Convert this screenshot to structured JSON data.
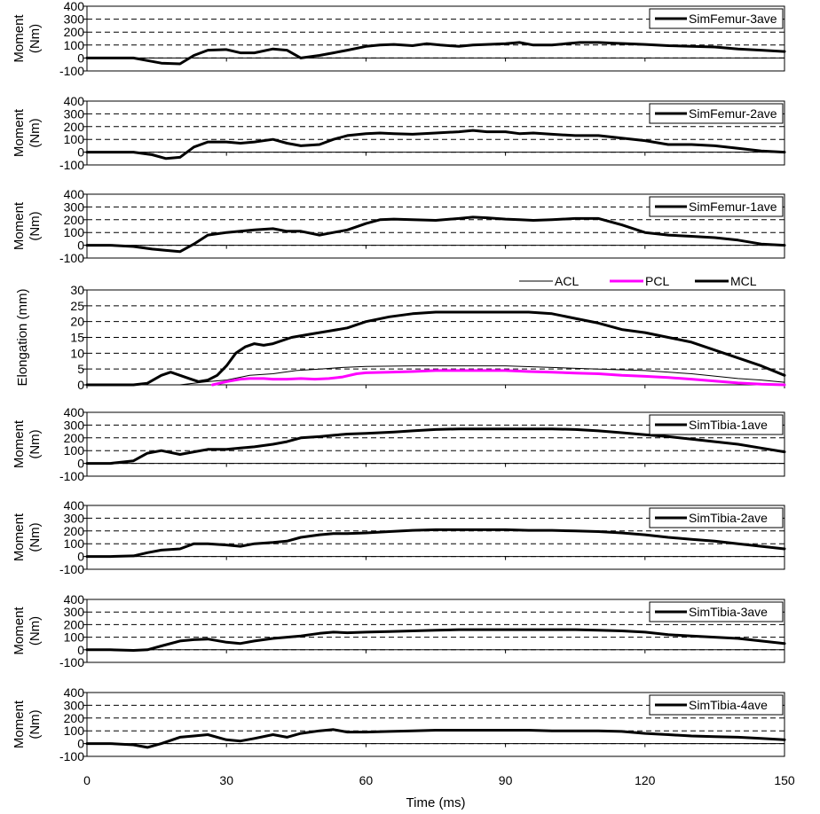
{
  "chart_data": {
    "type": "line",
    "xlabel": "Time (ms)",
    "xlim": [
      0,
      150
    ],
    "xticks": [
      0,
      30,
      60,
      90,
      120,
      150
    ],
    "panels": [
      {
        "ylabel": [
          "Moment",
          "(Nm)"
        ],
        "ylim": [
          -100,
          400
        ],
        "yticks": [
          -100,
          0,
          100,
          200,
          300,
          400
        ],
        "legend_position": "top-right",
        "series": [
          {
            "name": "SimFemur-3ave",
            "color": "#000000",
            "width": 3,
            "x": [
              0,
              5,
              10,
              13,
              16,
              20,
              23,
              26,
              30,
              33,
              36,
              40,
              43,
              46,
              50,
              53,
              56,
              60,
              63,
              66,
              70,
              73,
              76,
              80,
              83,
              86,
              90,
              93,
              96,
              100,
              103,
              106,
              110,
              113,
              116,
              120,
              125,
              130,
              135,
              140,
              145,
              150
            ],
            "y": [
              0,
              0,
              0,
              -20,
              -40,
              -45,
              20,
              60,
              65,
              40,
              40,
              70,
              60,
              0,
              20,
              40,
              60,
              90,
              100,
              105,
              95,
              110,
              100,
              90,
              100,
              105,
              110,
              120,
              100,
              100,
              110,
              120,
              120,
              115,
              110,
              105,
              95,
              90,
              85,
              70,
              60,
              50
            ]
          }
        ]
      },
      {
        "ylabel": [
          "Moment",
          "(Nm)"
        ],
        "ylim": [
          -100,
          400
        ],
        "yticks": [
          -100,
          0,
          100,
          200,
          300,
          400
        ],
        "legend_position": "top-right",
        "series": [
          {
            "name": "SimFemur-2ave",
            "color": "#000000",
            "width": 3,
            "x": [
              0,
              5,
              10,
              14,
              17,
              20,
              23,
              26,
              30,
              33,
              36,
              40,
              43,
              46,
              50,
              53,
              56,
              60,
              63,
              66,
              70,
              75,
              80,
              83,
              86,
              90,
              93,
              96,
              100,
              105,
              110,
              115,
              120,
              125,
              130,
              135,
              140,
              145,
              150
            ],
            "y": [
              0,
              0,
              0,
              -20,
              -50,
              -40,
              40,
              80,
              80,
              70,
              80,
              100,
              70,
              50,
              60,
              100,
              130,
              145,
              150,
              145,
              140,
              150,
              160,
              170,
              160,
              160,
              145,
              150,
              140,
              130,
              130,
              110,
              90,
              60,
              60,
              50,
              30,
              10,
              0
            ]
          }
        ]
      },
      {
        "ylabel": [
          "Moment",
          "(Nm)"
        ],
        "ylim": [
          -100,
          400
        ],
        "yticks": [
          -100,
          0,
          100,
          200,
          300,
          400
        ],
        "legend_position": "top-right",
        "series": [
          {
            "name": "SimFemur-1ave",
            "color": "#000000",
            "width": 3,
            "x": [
              0,
              5,
              10,
              14,
              17,
              20,
              23,
              26,
              30,
              33,
              36,
              40,
              43,
              46,
              50,
              53,
              56,
              60,
              63,
              66,
              70,
              75,
              80,
              83,
              86,
              90,
              93,
              96,
              100,
              105,
              110,
              115,
              120,
              125,
              130,
              135,
              140,
              145,
              150
            ],
            "y": [
              0,
              0,
              -10,
              -30,
              -40,
              -50,
              10,
              80,
              100,
              110,
              120,
              130,
              110,
              110,
              80,
              100,
              120,
              170,
              200,
              205,
              200,
              195,
              210,
              220,
              215,
              205,
              200,
              195,
              200,
              210,
              210,
              160,
              100,
              80,
              70,
              60,
              40,
              10,
              0
            ]
          }
        ]
      },
      {
        "ylabel": [
          "Elongation (mm)"
        ],
        "ylim": [
          0,
          30
        ],
        "yticks": [
          0,
          5,
          10,
          15,
          20,
          25,
          30
        ],
        "legend_position": "top",
        "series": [
          {
            "name": "ACL",
            "color": "#000000",
            "width": 1,
            "x": [
              0,
              20,
              26,
              30,
              35,
              40,
              45,
              50,
              55,
              60,
              70,
              80,
              90,
              100,
              110,
              120,
              130,
              140,
              145,
              150
            ],
            "y": [
              0,
              0,
              1,
              1.5,
              3,
              3.5,
              4.5,
              5,
              5.5,
              5.8,
              6,
              6,
              6,
              5.5,
              5,
              4.5,
              3.5,
              2,
              1.5,
              0.8
            ]
          },
          {
            "name": "PCL",
            "color": "#ff00ff",
            "width": 3,
            "x": [
              27,
              30,
              33,
              35,
              38,
              40,
              43,
              46,
              49,
              52,
              55,
              58,
              60,
              65,
              70,
              75,
              80,
              85,
              90,
              95,
              100,
              105,
              110,
              115,
              120,
              125,
              130,
              135,
              140,
              145,
              150
            ],
            "y": [
              0,
              1,
              1.8,
              2,
              2,
              1.8,
              1.8,
              2,
              1.8,
              2,
              2.5,
              3.5,
              3.8,
              4,
              4.2,
              4.5,
              4.5,
              4.5,
              4.5,
              4.2,
              4,
              3.7,
              3.5,
              3,
              2.7,
              2.3,
              1.8,
              1.2,
              0.6,
              0.2,
              0
            ]
          },
          {
            "name": "MCL",
            "color": "#000000",
            "width": 3,
            "x": [
              0,
              10,
              13,
              16,
              18,
              20,
              22,
              24,
              26,
              28,
              30,
              32,
              34,
              36,
              38,
              40,
              44,
              48,
              52,
              56,
              60,
              65,
              70,
              75,
              80,
              85,
              90,
              95,
              100,
              105,
              110,
              115,
              120,
              125,
              130,
              135,
              140,
              145,
              150
            ],
            "y": [
              0,
              0,
              0.5,
              3,
              4,
              3,
              2,
              1,
              1.5,
              3,
              6,
              10,
              12,
              13,
              12.5,
              13,
              15,
              16,
              17,
              18,
              20,
              21.5,
              22.5,
              23,
              23,
              23,
              23,
              23,
              22.5,
              21,
              19.5,
              17.5,
              16.5,
              15,
              13.5,
              11,
              8.5,
              6,
              3
            ]
          }
        ]
      },
      {
        "ylabel": [
          "Moment",
          "(Nm)"
        ],
        "ylim": [
          -100,
          400
        ],
        "yticks": [
          -100,
          0,
          100,
          200,
          300,
          400
        ],
        "legend_position": "top-right",
        "series": [
          {
            "name": "SimTibia-1ave",
            "color": "#000000",
            "width": 3,
            "x": [
              0,
              5,
              10,
              13,
              16,
              20,
              23,
              26,
              30,
              33,
              36,
              40,
              43,
              46,
              50,
              53,
              56,
              60,
              63,
              66,
              70,
              75,
              80,
              85,
              90,
              95,
              100,
              105,
              110,
              115,
              120,
              125,
              130,
              135,
              140,
              145,
              150
            ],
            "y": [
              0,
              0,
              20,
              80,
              100,
              70,
              90,
              110,
              110,
              120,
              130,
              150,
              170,
              200,
              210,
              220,
              230,
              235,
              240,
              245,
              255,
              265,
              270,
              270,
              270,
              270,
              270,
              265,
              255,
              240,
              225,
              210,
              190,
              170,
              150,
              120,
              90
            ]
          }
        ]
      },
      {
        "ylabel": [
          "Moment",
          "(Nm)"
        ],
        "ylim": [
          -100,
          400
        ],
        "yticks": [
          -100,
          0,
          100,
          200,
          300,
          400
        ],
        "legend_position": "top-right",
        "series": [
          {
            "name": "SimTibia-2ave",
            "color": "#000000",
            "width": 3,
            "x": [
              0,
              5,
              10,
              13,
              16,
              20,
              23,
              26,
              30,
              33,
              36,
              40,
              43,
              46,
              50,
              53,
              56,
              60,
              65,
              70,
              75,
              80,
              85,
              90,
              95,
              100,
              105,
              110,
              115,
              120,
              125,
              130,
              135,
              140,
              145,
              150
            ],
            "y": [
              0,
              0,
              5,
              30,
              50,
              60,
              100,
              100,
              90,
              80,
              100,
              110,
              120,
              150,
              170,
              180,
              180,
              185,
              195,
              205,
              210,
              210,
              210,
              210,
              205,
              205,
              200,
              195,
              185,
              170,
              150,
              135,
              120,
              100,
              80,
              60
            ]
          }
        ]
      },
      {
        "ylabel": [
          "Moment",
          "(Nm)"
        ],
        "ylim": [
          -100,
          400
        ],
        "yticks": [
          -100,
          0,
          100,
          200,
          300,
          400
        ],
        "legend_position": "top-right",
        "series": [
          {
            "name": "SimTibia-3ave",
            "color": "#000000",
            "width": 3,
            "x": [
              0,
              5,
              10,
              13,
              16,
              20,
              23,
              26,
              30,
              33,
              36,
              40,
              43,
              46,
              50,
              53,
              56,
              60,
              65,
              70,
              75,
              80,
              85,
              90,
              95,
              100,
              105,
              110,
              115,
              120,
              125,
              130,
              135,
              140,
              145,
              150
            ],
            "y": [
              0,
              0,
              -5,
              0,
              30,
              70,
              80,
              85,
              60,
              50,
              70,
              90,
              100,
              110,
              130,
              140,
              135,
              140,
              145,
              150,
              155,
              160,
              160,
              160,
              160,
              160,
              160,
              155,
              150,
              140,
              120,
              110,
              100,
              90,
              70,
              50
            ]
          }
        ]
      },
      {
        "ylabel": [
          "Moment",
          "(Nm)"
        ],
        "ylim": [
          -100,
          400
        ],
        "yticks": [
          -100,
          0,
          100,
          200,
          300,
          400
        ],
        "legend_position": "top-right",
        "series": [
          {
            "name": "SimTibia-4ave",
            "color": "#000000",
            "width": 3,
            "x": [
              0,
              5,
              10,
              13,
              16,
              20,
              23,
              26,
              30,
              33,
              36,
              40,
              43,
              46,
              50,
              53,
              56,
              60,
              65,
              70,
              75,
              80,
              85,
              90,
              95,
              100,
              105,
              110,
              115,
              120,
              125,
              130,
              135,
              140,
              145,
              150
            ],
            "y": [
              0,
              0,
              -10,
              -30,
              0,
              50,
              60,
              70,
              30,
              20,
              40,
              70,
              50,
              80,
              100,
              110,
              90,
              90,
              95,
              100,
              105,
              105,
              105,
              105,
              105,
              100,
              100,
              100,
              95,
              80,
              70,
              60,
              55,
              50,
              40,
              30
            ]
          }
        ]
      }
    ]
  }
}
